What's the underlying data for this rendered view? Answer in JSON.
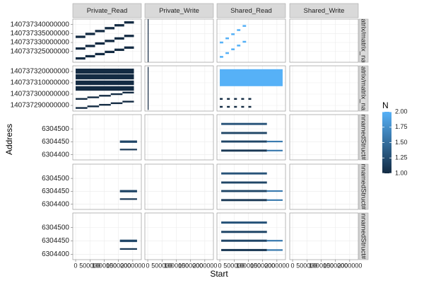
{
  "chart_data": {
    "type": "tile",
    "x_label": "Start",
    "y_label": "Address",
    "columns": [
      "Private_Read",
      "Private_Write",
      "Shared_Read",
      "Shared_Write"
    ],
    "xlim": [
      -100000,
      2300000
    ],
    "xticks": [
      0,
      500000,
      1000000,
      1500000,
      2000000
    ],
    "grid": true,
    "legend": {
      "title": "N",
      "lim": [
        1,
        2
      ],
      "low": "#132B43",
      "high": "#56B1F7",
      "ticks": [
        {
          "value": 1,
          "label": "1.00"
        },
        {
          "value": 1.25,
          "label": "1.25"
        },
        {
          "value": 1.5,
          "label": "1.50"
        },
        {
          "value": 1.75,
          "label": "1.75"
        },
        {
          "value": 2,
          "label": "2.00"
        }
      ]
    },
    "rows": [
      {
        "strip": "atrix/matrix_na",
        "ylim": [
          140737319000000,
          140737343000000
        ],
        "yticks": [
          140737325000000,
          140737330000000,
          140737335000000,
          140737340000000
        ],
        "cells": [
          {
            "x0": [
              0,
              340000,
              680000,
              1020000,
              1360000,
              1700000,
              0,
              340000,
              680000,
              1020000,
              1360000,
              1700000,
              0,
              340000,
              680000,
              1020000,
              1360000,
              1700000
            ],
            "x1": [
              340000,
              680000,
              1020000,
              1360000,
              1700000,
              2040000,
              340000,
              680000,
              1020000,
              1360000,
              1700000,
              2040000,
              340000,
              680000,
              1020000,
              1360000,
              1700000,
              2040000
            ],
            "y0": [
              140737320500000,
              140737321700000,
              140737322900000,
              140737324100000,
              140737325300000,
              140737326500000,
              140737326000000,
              140737327400000,
              140737328800000,
              140737330200000,
              140737331600000,
              140737333000000,
              140737332500000,
              140737334100000,
              140737335700000,
              140737337300000,
              140737338900000,
              140737340500000
            ],
            "y1": [
              140737321800000,
              140737323000000,
              140737324200000,
              140737325400000,
              140737326600000,
              140737327800000,
              140737327300000,
              140737328700000,
              140737330100000,
              140737331500000,
              140737332900000,
              140737334300000,
              140737333800000,
              140737335400000,
              140737337000000,
              140737338600000,
              140737340200000,
              140737341800000
            ],
            "n": [
              1,
              1,
              1,
              1,
              1,
              1,
              1,
              1,
              1,
              1,
              1,
              1,
              1,
              1,
              1,
              1,
              1,
              1
            ]
          },
          {
            "x0": [
              0
            ],
            "x1": [
              0
            ],
            "y0": [
              140737319000000
            ],
            "y1": [
              140737343000000
            ],
            "n": [
              1
            ]
          },
          {
            "x0": [
              0,
              200000,
              400000,
              600000,
              800000,
              0,
              200000,
              400000,
              600000,
              800000
            ],
            "x1": [
              120000,
              320000,
              520000,
              720000,
              920000,
              120000,
              320000,
              520000,
              720000,
              920000
            ],
            "y0": [
              140737321500000,
              140737323600000,
              140737325700000,
              140737327800000,
              140737329900000,
              140737329500000,
              140737331800000,
              140737334100000,
              140737336400000,
              140737338700000
            ],
            "y1": [
              140737322500000,
              140737324600000,
              140737326700000,
              140737328800000,
              140737330900000,
              140737330500000,
              140737332800000,
              140737335100000,
              140737337400000,
              140737339700000
            ],
            "n": [
              2,
              2,
              2,
              2,
              2,
              2,
              2,
              2,
              2,
              2
            ]
          },
          {
            "x0": [],
            "x1": [],
            "y0": [],
            "y1": [],
            "n": []
          }
        ]
      },
      {
        "strip": "atrix/matrix_na",
        "ylim": [
          140737285000000,
          140737325000000
        ],
        "yticks": [
          140737290000000,
          140737300000000,
          140737310000000,
          140737320000000
        ],
        "cells": [
          {
            "x0": [
              0,
              0,
              0,
              0,
              0,
              410000,
              820000,
              1230000,
              1640000,
              0,
              410000,
              820000,
              1230000,
              1640000
            ],
            "x1": [
              2040000,
              2040000,
              2040000,
              2040000,
              410000,
              820000,
              1230000,
              1640000,
              2040000,
              410000,
              820000,
              1230000,
              1640000,
              2040000
            ],
            "y0": [
              140737303000000,
              140737308000000,
              140737313000000,
              140737318000000,
              140737287000000,
              140737288400000,
              140737289800000,
              140737291200000,
              140737292600000,
              140737295000000,
              140737296400000,
              140737297800000,
              140737299200000,
              140737300600000
            ],
            "y1": [
              140737307000000,
              140737312000000,
              140737317500000,
              140737322500000,
              140737288500000,
              140737289900000,
              140737291300000,
              140737292700000,
              140737294100000,
              140737296500000,
              140737297900000,
              140737299300000,
              140737300700000,
              140737302100000
            ],
            "n": [
              1,
              1,
              1,
              1,
              1,
              1,
              1,
              1,
              1,
              1,
              1,
              1,
              1,
              1
            ]
          },
          {
            "x0": [
              0
            ],
            "x1": [
              0
            ],
            "y0": [
              140737286000000
            ],
            "y1": [
              140737324000000
            ],
            "n": [
              1
            ]
          },
          {
            "x0": [
              0,
              0,
              250000,
              500000,
              750000,
              1000000,
              0,
              250000,
              500000,
              750000,
              1000000
            ],
            "x1": [
              2200000,
              100000,
              350000,
              600000,
              850000,
              1100000,
              100000,
              350000,
              600000,
              850000,
              1100000
            ],
            "y0": [
              140737307000000,
              140737295000000,
              140737295000000,
              140737295000000,
              140737295000000,
              140737295000000,
              140737288000000,
              140737288000000,
              140737288000000,
              140737288000000,
              140737288000000
            ],
            "y1": [
              140737322000000,
              140737296500000,
              140737296500000,
              140737296500000,
              140737296500000,
              140737296500000,
              140737289500000,
              140737289500000,
              140737289500000,
              140737289500000,
              140737289500000
            ],
            "n": [
              2,
              1,
              1,
              1,
              1,
              1,
              1,
              1,
              1,
              1,
              1
            ]
          },
          {
            "x0": [],
            "x1": [],
            "y0": [],
            "y1": [],
            "n": []
          }
        ]
      },
      {
        "strip": "nnamedStruct#",
        "ylim": [
          6304380,
          6304555
        ],
        "yticks": [
          6304400,
          6304450,
          6304500
        ],
        "cells": [
          {
            "x0": [
              1550000,
              1550000
            ],
            "x1": [
              2150000,
              2150000
            ],
            "y0": [
              6304446,
              6304417
            ],
            "y1": [
              6304455,
              6304423
            ],
            "n": [
              1.2,
              1.1
            ]
          },
          {
            "x0": [],
            "x1": [],
            "y0": [],
            "y1": [],
            "n": []
          },
          {
            "x0": [
              50000,
              50000,
              50000,
              50000,
              1650000,
              1650000
            ],
            "x1": [
              1650000,
              1650000,
              1650000,
              1650000,
              2200000,
              2200000
            ],
            "y0": [
              6304515,
              6304480,
              6304447,
              6304412,
              6304448,
              6304413
            ],
            "y1": [
              6304523,
              6304488,
              6304455,
              6304420,
              6304454,
              6304419
            ],
            "n": [
              1.3,
              1.2,
              1.2,
              1.1,
              1.6,
              1.6
            ]
          },
          {
            "x0": [],
            "x1": [],
            "y0": [],
            "y1": [],
            "n": []
          }
        ]
      },
      {
        "strip": "nnamedStruct#",
        "ylim": [
          6304380,
          6304555
        ],
        "yticks": [
          6304400,
          6304450,
          6304500
        ],
        "cells": [
          {
            "x0": [
              1550000,
              1550000
            ],
            "x1": [
              2150000,
              2150000
            ],
            "y0": [
              6304446,
              6304417
            ],
            "y1": [
              6304455,
              6304423
            ],
            "n": [
              1.2,
              1.1
            ]
          },
          {
            "x0": [],
            "x1": [],
            "y0": [],
            "y1": [],
            "n": []
          },
          {
            "x0": [
              50000,
              50000,
              50000,
              50000,
              1650000,
              1650000
            ],
            "x1": [
              1650000,
              1650000,
              1650000,
              1650000,
              2200000,
              2200000
            ],
            "y0": [
              6304515,
              6304480,
              6304447,
              6304412,
              6304448,
              6304413
            ],
            "y1": [
              6304523,
              6304488,
              6304455,
              6304420,
              6304454,
              6304419
            ],
            "n": [
              1.3,
              1.2,
              1.2,
              1.1,
              1.6,
              1.6
            ]
          },
          {
            "x0": [],
            "x1": [],
            "y0": [],
            "y1": [],
            "n": []
          }
        ]
      },
      {
        "strip": "nnamedStruct#",
        "ylim": [
          6304380,
          6304555
        ],
        "yticks": [
          6304400,
          6304450,
          6304500
        ],
        "cells": [
          {
            "x0": [
              1550000,
              1550000
            ],
            "x1": [
              2150000,
              2150000
            ],
            "y0": [
              6304446,
              6304417
            ],
            "y1": [
              6304455,
              6304423
            ],
            "n": [
              1.2,
              1.1
            ]
          },
          {
            "x0": [],
            "x1": [],
            "y0": [],
            "y1": [],
            "n": []
          },
          {
            "x0": [
              50000,
              50000,
              50000,
              50000,
              1650000,
              1650000
            ],
            "x1": [
              1650000,
              1650000,
              1650000,
              1650000,
              2200000,
              2200000
            ],
            "y0": [
              6304515,
              6304480,
              6304447,
              6304412,
              6304448,
              6304413
            ],
            "y1": [
              6304523,
              6304488,
              6304455,
              6304420,
              6304454,
              6304419
            ],
            "n": [
              1.3,
              1.2,
              1.2,
              1.1,
              1.6,
              1.6
            ]
          },
          {
            "x0": [],
            "x1": [],
            "y0": [],
            "y1": [],
            "n": []
          }
        ]
      }
    ]
  }
}
